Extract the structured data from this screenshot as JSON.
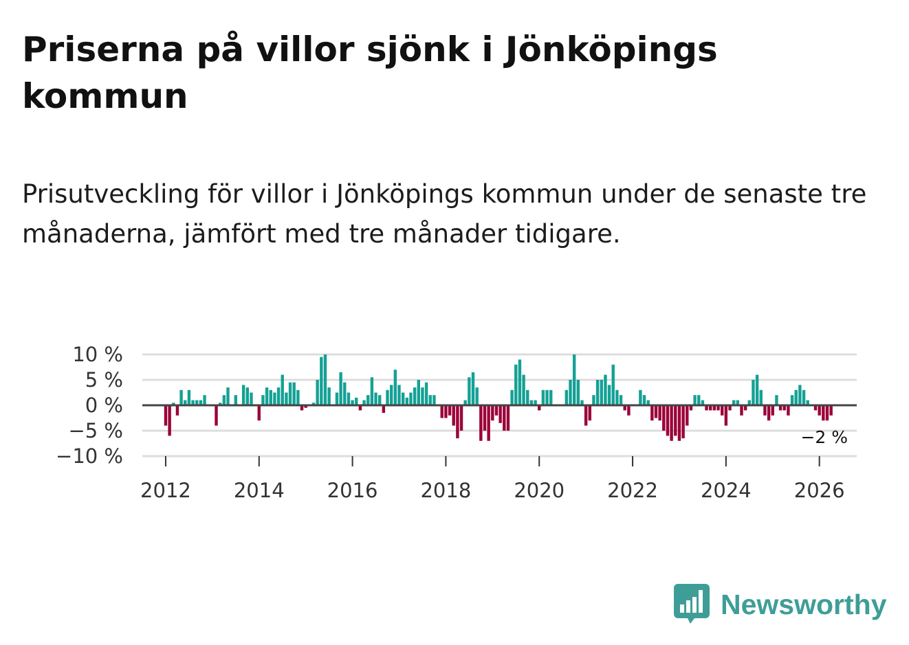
{
  "title": "Priserna på villor sjönk i Jönköpings kommun",
  "subtitle": "Prisutveckling för villor i Jönköpings kommun under de senaste tre månaderna, jämfört med tre månader tidigare.",
  "colors": {
    "positive": "#14a195",
    "negative": "#9b0038",
    "zero_line": "#444444",
    "grid": "#dddddd",
    "brand": "#3e9e97"
  },
  "logo": {
    "text": "Newsworthy",
    "icon": "bar-chart-icon"
  },
  "chart_data": {
    "type": "bar",
    "title": "Priserna på villor sjönk i Jönköpings kommun",
    "xlabel": "",
    "ylabel": "",
    "ylim": [
      -10,
      10
    ],
    "y_ticks": [
      10,
      5,
      0,
      -5,
      -10
    ],
    "y_tick_labels": [
      "10 %",
      "5 %",
      "0 %",
      "−5 %",
      "−10 %"
    ],
    "x_range": [
      2011.5,
      2026.8
    ],
    "x_ticks": [
      2012,
      2014,
      2016,
      2018,
      2020,
      2022,
      2024,
      2026
    ],
    "x_tick_labels": [
      "2012",
      "2014",
      "2016",
      "2018",
      "2020",
      "2022",
      "2024",
      "2026"
    ],
    "start": "2012-01",
    "frequency": "monthly",
    "unit": "%",
    "last_value_label": "−2 %",
    "values": [
      -4,
      -6,
      0.5,
      -2,
      3,
      1,
      3,
      1,
      1,
      1,
      2,
      0,
      0,
      -4,
      0.5,
      2,
      3.5,
      0,
      2,
      0,
      4,
      3.5,
      2.5,
      0,
      -3,
      2,
      3.5,
      3,
      2.5,
      3.5,
      6,
      2.5,
      4.5,
      4.5,
      3,
      -1,
      -0.5,
      0,
      0.5,
      5,
      9.5,
      10,
      3.5,
      0,
      2.5,
      6.5,
      4.5,
      2.5,
      1,
      1.5,
      -1,
      1,
      2,
      5.5,
      2.5,
      2,
      -1.5,
      3,
      4,
      7,
      4,
      2.5,
      1.5,
      2.5,
      3.5,
      5,
      3.5,
      4.5,
      2,
      2,
      0,
      -2.5,
      -2.5,
      -2,
      -4,
      -6.5,
      -5,
      1,
      5.5,
      6.5,
      3.5,
      -7,
      -5,
      -7,
      -3,
      -2,
      -3.5,
      -5,
      -5,
      3,
      8,
      9,
      6,
      3,
      1,
      1,
      -1,
      3,
      3,
      3,
      0,
      0,
      0,
      3,
      5,
      10,
      5,
      1,
      -4,
      -3,
      2,
      5,
      5,
      6,
      4,
      8,
      3,
      2,
      -1,
      -2,
      0,
      0,
      3,
      2,
      1,
      -3,
      -2.5,
      -3,
      -5,
      -6,
      -7,
      -6,
      -7,
      -6.5,
      -4,
      -1,
      2,
      2,
      1,
      -1,
      -1,
      -1,
      -1,
      -2,
      -4,
      -1,
      1,
      1,
      -2,
      -1,
      1,
      5,
      6,
      3,
      -2,
      -3,
      -2,
      2,
      -1,
      -1,
      -2,
      2,
      3,
      4,
      3,
      1,
      0,
      -1,
      -2,
      -3,
      -3,
      -2
    ]
  }
}
